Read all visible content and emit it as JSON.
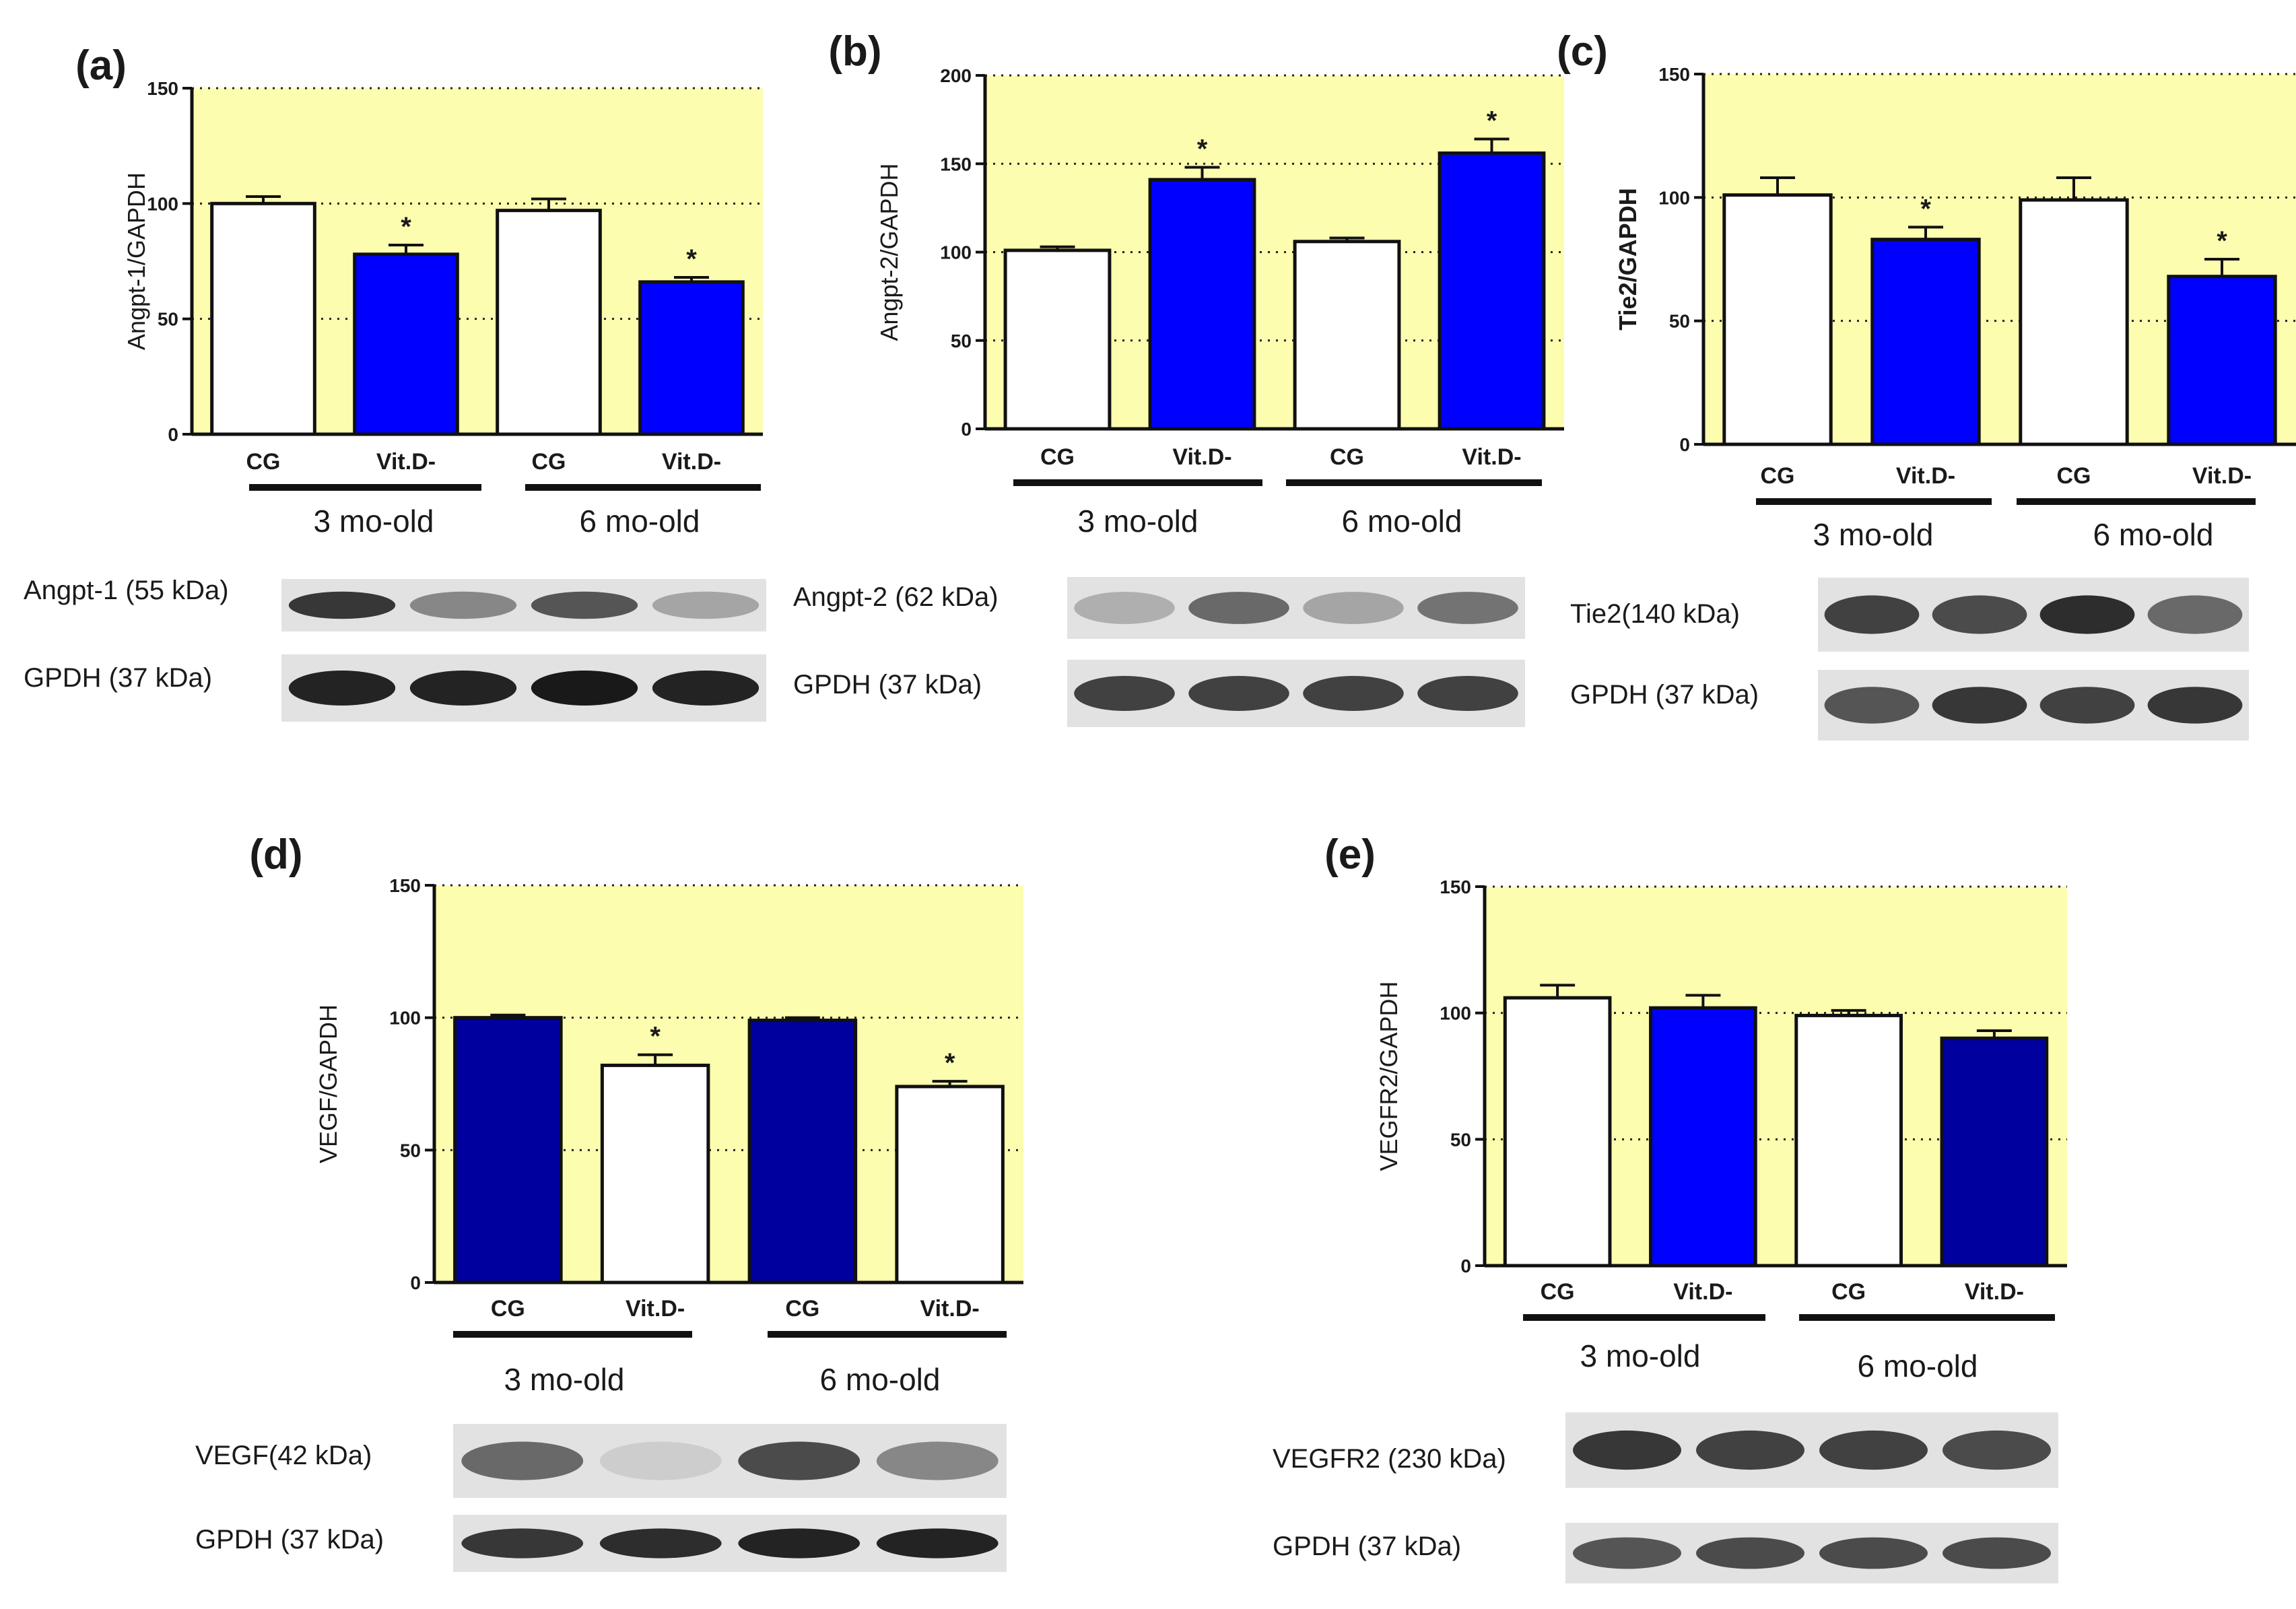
{
  "figure": {
    "background_color": "#ffffff",
    "plot_background_color": "#fdfdb0",
    "white_bar_color": "#ffffff",
    "bright_blue_color": "#0000ff",
    "navy_blue_color": "#00009e"
  },
  "chart_data": [
    {
      "id": "a",
      "panel_label": "(a)",
      "type": "bar",
      "ylabel": "Angpt-1/GAPDH",
      "ylim": [
        0,
        150
      ],
      "yticks": [
        0,
        50,
        100,
        150
      ],
      "ytick_labels": [
        "0",
        "50",
        "100",
        "150"
      ],
      "categories": [
        "CG",
        "Vit.D-",
        "CG",
        "Vit.D-"
      ],
      "values": [
        100,
        78,
        97,
        66
      ],
      "errors": [
        3,
        4,
        5,
        2
      ],
      "bar_fills": [
        "white",
        "bright_blue",
        "white",
        "bright_blue"
      ],
      "significance": [
        "",
        "*",
        "",
        "*"
      ],
      "groups": [
        "3 mo-old",
        "6 mo-old"
      ],
      "grid": "dotted",
      "blots": [
        {
          "label": "Angpt-1 (55 kDa)",
          "band_intensities": [
            0.85,
            0.45,
            0.7,
            0.3
          ]
        },
        {
          "label": "GPDH (37 kDa)",
          "band_intensities": [
            0.95,
            0.95,
            1.0,
            0.95
          ]
        }
      ]
    },
    {
      "id": "b",
      "panel_label": "(b)",
      "type": "bar",
      "ylabel": "Angpt-2/GAPDH",
      "ylim": [
        0,
        200
      ],
      "yticks": [
        0,
        50,
        100,
        150,
        200
      ],
      "ytick_labels": [
        "0",
        "50",
        "100",
        "150",
        "200"
      ],
      "categories": [
        "CG",
        "Vit.D-",
        "CG",
        "Vit.D-"
      ],
      "values": [
        101,
        141,
        106,
        156
      ],
      "errors": [
        2,
        7,
        2,
        8
      ],
      "bar_fills": [
        "white",
        "bright_blue",
        "white",
        "bright_blue"
      ],
      "significance": [
        "",
        "*",
        "",
        "*"
      ],
      "groups": [
        "3 mo-old",
        "6 mo-old"
      ],
      "grid": "dotted",
      "blots": [
        {
          "label": "Angpt-2 (62 kDa)",
          "band_intensities": [
            0.25,
            0.6,
            0.3,
            0.55
          ]
        },
        {
          "label": "GPDH (37 kDa)",
          "band_intensities": [
            0.8,
            0.8,
            0.8,
            0.8
          ]
        }
      ]
    },
    {
      "id": "c",
      "panel_label": "(c)",
      "type": "bar",
      "ylabel": "Tie2/GAPDH",
      "ylim": [
        0,
        150
      ],
      "yticks": [
        0,
        50,
        100,
        150
      ],
      "ytick_labels": [
        "0",
        "50",
        "100",
        "150"
      ],
      "categories": [
        "CG",
        "Vit.D-",
        "CG",
        "Vit.D-"
      ],
      "values": [
        101,
        83,
        99,
        68
      ],
      "errors": [
        7,
        5,
        9,
        7
      ],
      "bar_fills": [
        "white",
        "bright_blue",
        "white",
        "bright_blue"
      ],
      "significance": [
        "",
        "*",
        "",
        "*"
      ],
      "groups": [
        "3 mo-old",
        "6 mo-old"
      ],
      "grid": "dotted",
      "blots": [
        {
          "label": "Tie2(140 kDa)",
          "band_intensities": [
            0.8,
            0.75,
            0.9,
            0.6
          ]
        },
        {
          "label": "GPDH (37 kDa)",
          "band_intensities": [
            0.7,
            0.85,
            0.8,
            0.85
          ]
        }
      ]
    },
    {
      "id": "d",
      "panel_label": "(d)",
      "type": "bar",
      "ylabel": "VEGF/GAPDH",
      "ylim": [
        0,
        150
      ],
      "yticks": [
        0,
        50,
        100,
        150
      ],
      "ytick_labels": [
        "0",
        "50",
        "100",
        "150"
      ],
      "categories": [
        "CG",
        "Vit.D-",
        "CG",
        "Vit.D-"
      ],
      "values": [
        100,
        82,
        99,
        74
      ],
      "errors": [
        1,
        4,
        1,
        2
      ],
      "bar_fills": [
        "navy_blue",
        "white",
        "navy_blue",
        "white"
      ],
      "significance": [
        "",
        "*",
        "",
        "*"
      ],
      "groups": [
        "3 mo-old",
        "6 mo-old"
      ],
      "grid": "dotted",
      "blots": [
        {
          "label": "VEGF(42 kDa)",
          "band_intensities": [
            0.6,
            0.1,
            0.75,
            0.45
          ]
        },
        {
          "label": "GPDH (37 kDa)",
          "band_intensities": [
            0.85,
            0.9,
            0.95,
            0.95
          ]
        }
      ]
    },
    {
      "id": "e",
      "panel_label": "(e)",
      "type": "bar",
      "ylabel": "VEGFR2/GAPDH",
      "ylim": [
        0,
        150
      ],
      "yticks": [
        0,
        50,
        100,
        150
      ],
      "ytick_labels": [
        "0",
        "50",
        "100",
        "150"
      ],
      "categories": [
        "CG",
        "Vit.D-",
        "CG",
        "Vit.D-"
      ],
      "values": [
        106,
        102,
        99,
        90
      ],
      "errors": [
        5,
        5,
        2,
        3
      ],
      "bar_fills": [
        "white",
        "bright_blue",
        "white",
        "navy_blue"
      ],
      "significance": [
        "",
        "",
        "",
        ""
      ],
      "groups": [
        "3 mo-old",
        "6 mo-old"
      ],
      "grid": "dotted",
      "blots": [
        {
          "label": "VEGFR2 (230 kDa)",
          "band_intensities": [
            0.85,
            0.8,
            0.8,
            0.75
          ]
        },
        {
          "label": "GPDH (37 kDa)",
          "band_intensities": [
            0.7,
            0.75,
            0.75,
            0.75
          ]
        }
      ]
    }
  ]
}
